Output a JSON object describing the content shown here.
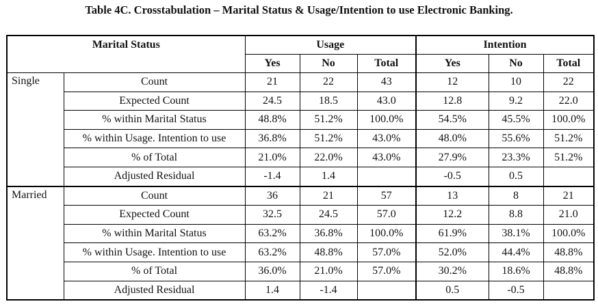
{
  "title": "Table 4C. Crosstabulation – Marital Status & Usage/Intention to use Electronic Banking.",
  "header": {
    "marital_status": "Marital Status",
    "usage": "Usage",
    "intention": "Intention",
    "sub": [
      "Yes",
      "No",
      "Total",
      "Yes",
      "No",
      "Total"
    ]
  },
  "groups": [
    {
      "name": "Single",
      "rows": [
        {
          "label": "Count",
          "values": [
            "21",
            "22",
            "43",
            "12",
            "10",
            "22"
          ]
        },
        {
          "label": "Expected Count",
          "values": [
            "24.5",
            "18.5",
            "43.0",
            "12.8",
            "9.2",
            "22.0"
          ]
        },
        {
          "label": "% within Marital Status",
          "values": [
            "48.8%",
            "51.2%",
            "100.0%",
            "54.5%",
            "45.5%",
            "100.0%"
          ]
        },
        {
          "label": "% within Usage. Intention to use",
          "values": [
            "36.8%",
            "51.2%",
            "43.0%",
            "48.0%",
            "55.6%",
            "51.2%"
          ]
        },
        {
          "label": "% of Total",
          "values": [
            "21.0%",
            "22.0%",
            "43.0%",
            "27.9%",
            "23.3%",
            "51.2%"
          ]
        },
        {
          "label": "Adjusted Residual",
          "values": [
            "-1.4",
            "1.4",
            "",
            "-0.5",
            "0.5",
            ""
          ]
        }
      ]
    },
    {
      "name": "Married",
      "rows": [
        {
          "label": "Count",
          "values": [
            "36",
            "21",
            "57",
            "13",
            "8",
            "21"
          ]
        },
        {
          "label": "Expected Count",
          "values": [
            "32.5",
            "24.5",
            "57.0",
            "12.2",
            "8.8",
            "21.0"
          ]
        },
        {
          "label": "% within Marital Status",
          "values": [
            "63.2%",
            "36.8%",
            "100.0%",
            "61.9%",
            "38.1%",
            "100.0%"
          ]
        },
        {
          "label": "% within Usage. Intention to use",
          "values": [
            "63.2%",
            "48.8%",
            "57.0%",
            "52.0%",
            "44.4%",
            "48.8%"
          ]
        },
        {
          "label": "% of Total",
          "values": [
            "36.0%",
            "21.0%",
            "57.0%",
            "30.2%",
            "18.6%",
            "48.8%"
          ]
        },
        {
          "label": "Adjusted Residual",
          "values": [
            "1.4",
            "-1.4",
            "",
            "0.5",
            "-0.5",
            ""
          ]
        }
      ]
    }
  ]
}
